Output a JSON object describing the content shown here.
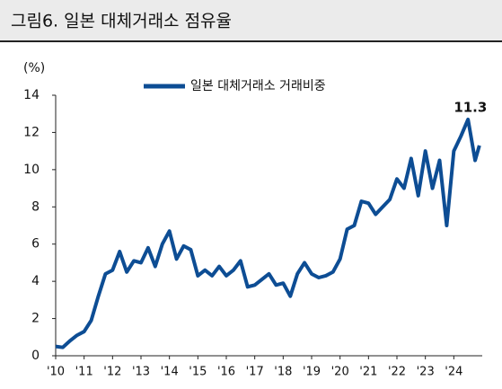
{
  "chart_data": {
    "type": "line",
    "title": "그림6. 일본 대체거래소 점유율",
    "y_label": "(%)",
    "legend": "top-center",
    "annotation": "11.3",
    "series": [
      {
        "name": "일본 대체거래소 거래비중",
        "color": "#0d4d94",
        "x": [
          2010.0,
          2010.25,
          2010.5,
          2010.75,
          2011.0,
          2011.25,
          2011.5,
          2011.75,
          2012.0,
          2012.25,
          2012.5,
          2012.75,
          2013.0,
          2013.25,
          2013.5,
          2013.75,
          2014.0,
          2014.25,
          2014.5,
          2014.75,
          2015.0,
          2015.25,
          2015.5,
          2015.75,
          2016.0,
          2016.25,
          2016.5,
          2016.75,
          2017.0,
          2017.25,
          2017.5,
          2017.75,
          2018.0,
          2018.25,
          2018.5,
          2018.75,
          2019.0,
          2019.25,
          2019.5,
          2019.75,
          2020.0,
          2020.25,
          2020.5,
          2020.75,
          2021.0,
          2021.25,
          2021.5,
          2021.75,
          2022.0,
          2022.25,
          2022.5,
          2022.75,
          2023.0,
          2023.25,
          2023.5,
          2023.75,
          2024.0,
          2024.25,
          2024.5,
          2024.75,
          2024.9
        ],
        "values": [
          0.5,
          0.45,
          0.8,
          1.1,
          1.3,
          1.9,
          3.2,
          4.4,
          4.6,
          5.6,
          4.5,
          5.1,
          5.0,
          5.8,
          4.8,
          6.0,
          6.7,
          5.2,
          5.9,
          5.7,
          4.3,
          4.6,
          4.3,
          4.8,
          4.3,
          4.6,
          5.1,
          3.7,
          3.8,
          4.1,
          4.4,
          3.8,
          3.9,
          3.2,
          4.4,
          5.0,
          4.4,
          4.2,
          4.3,
          4.5,
          5.2,
          6.8,
          7.0,
          8.3,
          8.2,
          7.6,
          8.0,
          8.4,
          9.5,
          9.0,
          10.6,
          8.6,
          11.0,
          9.0,
          10.5,
          7.0,
          11.0,
          11.8,
          12.7,
          10.5,
          11.3
        ]
      }
    ],
    "xlim": [
      2010,
      2025
    ],
    "xticks": [
      {
        "value": 2010,
        "label": "'10"
      },
      {
        "value": 2011,
        "label": "'11"
      },
      {
        "value": 2012,
        "label": "'12"
      },
      {
        "value": 2013,
        "label": "'13"
      },
      {
        "value": 2014,
        "label": "'14"
      },
      {
        "value": 2015,
        "label": "'15"
      },
      {
        "value": 2016,
        "label": "'16"
      },
      {
        "value": 2017,
        "label": "'17"
      },
      {
        "value": 2018,
        "label": "'18"
      },
      {
        "value": 2019,
        "label": "'19"
      },
      {
        "value": 2020,
        "label": "'20"
      },
      {
        "value": 2021,
        "label": "'21"
      },
      {
        "value": 2022,
        "label": "'22"
      },
      {
        "value": 2023,
        "label": "'23"
      },
      {
        "value": 2024,
        "label": "'24"
      }
    ],
    "ylim": [
      0,
      14
    ],
    "yticks": [
      0,
      2,
      4,
      6,
      8,
      10,
      12,
      14
    ],
    "grid": false
  }
}
